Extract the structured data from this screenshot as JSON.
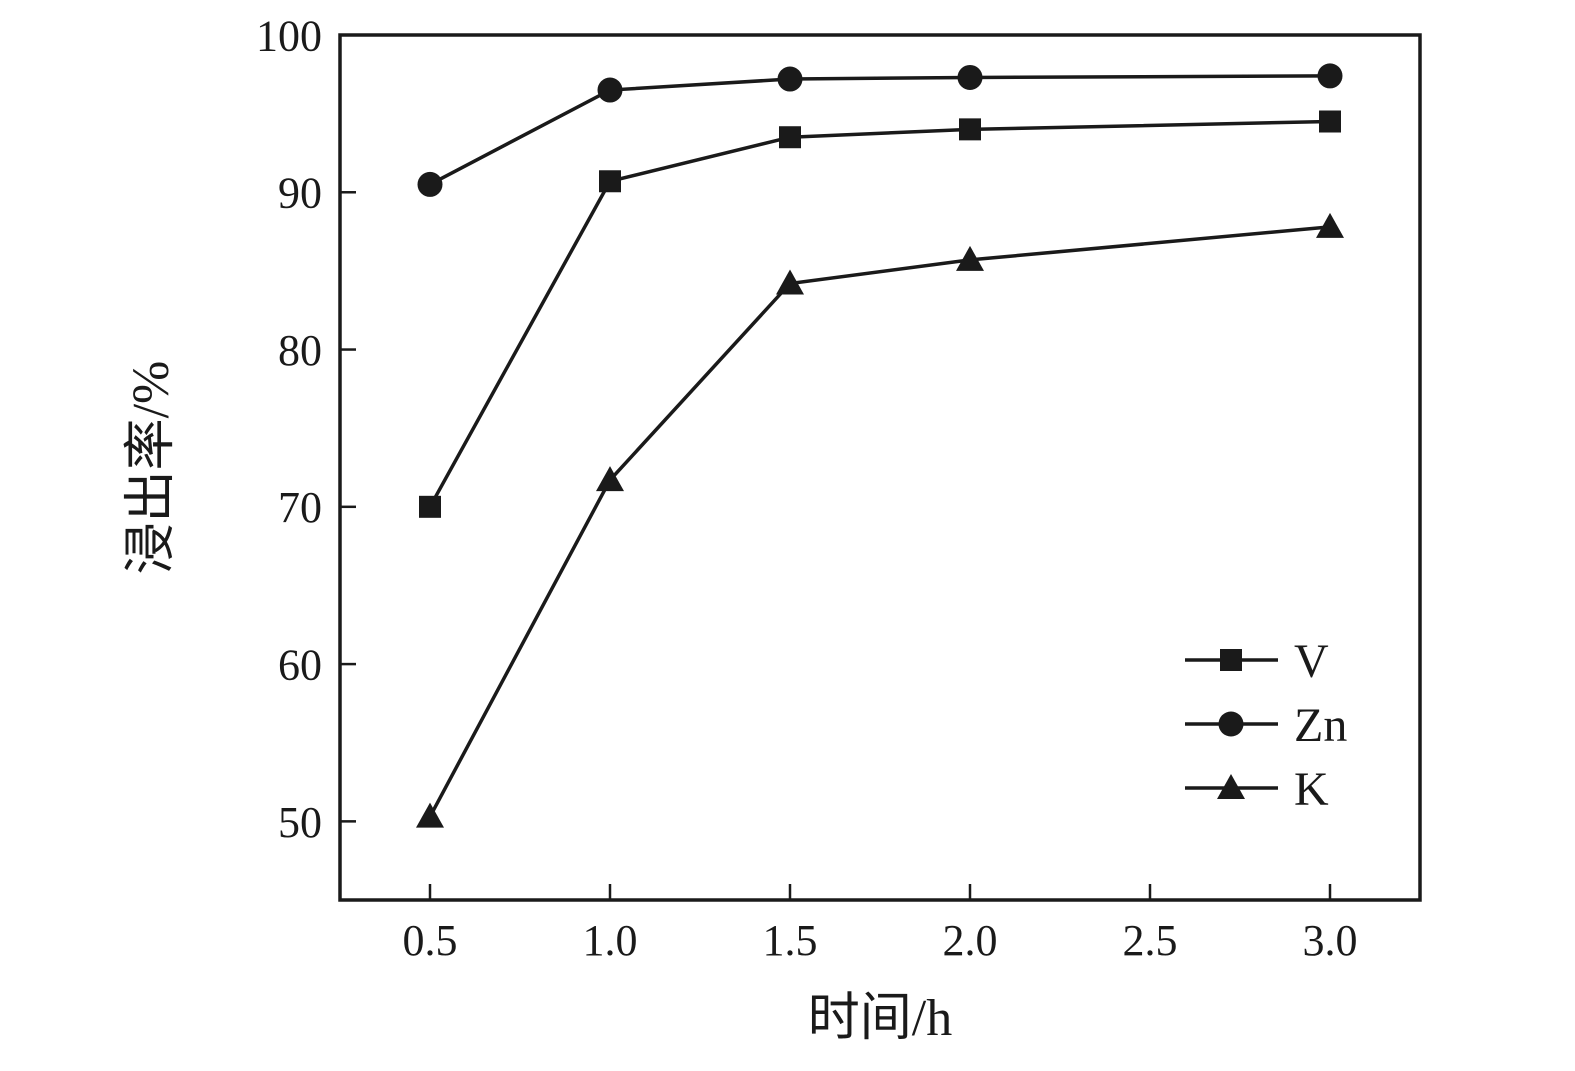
{
  "figure": {
    "background": "#ffffff",
    "ink_color": "#1a1a1a"
  },
  "chart_data": {
    "type": "line",
    "title": "",
    "xlabel": "时间/h",
    "ylabel": "浸出率/%",
    "x": [
      0.5,
      1.0,
      1.5,
      2.0,
      3.0
    ],
    "series": [
      {
        "name": "V",
        "marker": "square",
        "values": [
          70.0,
          90.7,
          93.5,
          94.0,
          94.5
        ]
      },
      {
        "name": "Zn",
        "marker": "circle",
        "values": [
          90.5,
          96.5,
          97.2,
          97.3,
          97.4
        ]
      },
      {
        "name": "K",
        "marker": "triangle",
        "values": [
          50.3,
          71.7,
          84.2,
          85.7,
          87.8
        ]
      }
    ],
    "xlim": [
      0.25,
      3.25
    ],
    "ylim": [
      45,
      100
    ],
    "x_ticks": [
      0.5,
      1.0,
      1.5,
      2.0,
      2.5,
      3.0
    ],
    "x_tick_labels": [
      "0.5",
      "1.0",
      "1.5",
      "2.0",
      "2.5",
      "3.0"
    ],
    "y_ticks": [
      50,
      60,
      70,
      80,
      90,
      100
    ],
    "y_tick_labels": [
      "50",
      "60",
      "70",
      "80",
      "90",
      "100"
    ],
    "legend": [
      "V",
      "Zn",
      "K"
    ],
    "legend_position": "right-center",
    "grid": false,
    "line_color": "#1a1a1a"
  }
}
